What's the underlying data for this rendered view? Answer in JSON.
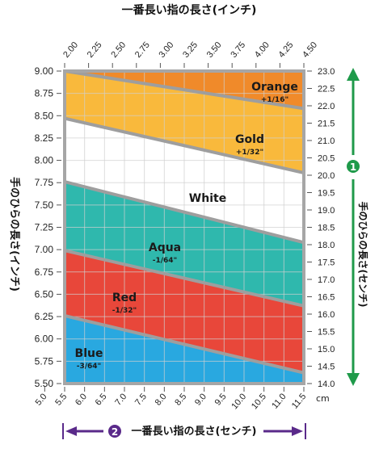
{
  "chart_data": {
    "type": "area",
    "top_axis": {
      "title": "一番長い指の長さ(インチ)",
      "ticks": [
        "2.00",
        "2.25",
        "2.50",
        "2.75",
        "3.00",
        "3.25",
        "3.50",
        "3.75",
        "4.00",
        "4.25",
        "4.50"
      ],
      "range": [
        2.0,
        4.5
      ]
    },
    "bottom_axis": {
      "title": "一番長い指の長さ(センチ)",
      "badge": "2",
      "ticks": [
        "5.0",
        "5.5",
        "6.0",
        "6.5",
        "7.0",
        "7.5",
        "8.0",
        "8.5",
        "9.0",
        "9.5",
        "10.0",
        "10.5",
        "11.0",
        "11.5"
      ],
      "range": [
        5.5,
        11.5
      ],
      "unit": "cm"
    },
    "left_axis": {
      "title": "手のひらの長さ(インチ)",
      "ticks": [
        "9.00",
        "8.75",
        "8.50",
        "8.25",
        "8.00",
        "7.75",
        "7.50",
        "7.25",
        "7.00",
        "6.75",
        "6.50",
        "6.25",
        "6.00",
        "5.75",
        "5.50"
      ],
      "range": [
        5.5,
        9.0
      ]
    },
    "right_axis": {
      "title": "手のひらの長さ(センチ)",
      "badge": "1",
      "ticks": [
        "23.0",
        "22.5",
        "22.0",
        "21.5",
        "21.0",
        "20.5",
        "20.0",
        "19.5",
        "19.0",
        "18.5",
        "18.0",
        "17.5",
        "17.0",
        "16.5",
        "16.0",
        "15.5",
        "15.0",
        "14.5",
        "14.0"
      ],
      "range": [
        14.0,
        23.0
      ]
    },
    "zones": [
      {
        "name": "Orange",
        "adjust": "+1/16\"",
        "color": "#f08a2a"
      },
      {
        "name": "Gold",
        "adjust": "+1/32\"",
        "color": "#f9b93c"
      },
      {
        "name": "White",
        "adjust": "",
        "color": "#ffffff"
      },
      {
        "name": "Aqua",
        "adjust": "-1/64\"",
        "color": "#2fb8ad"
      },
      {
        "name": "Red",
        "adjust": "-1/32\"",
        "color": "#e8473a"
      },
      {
        "name": "Blue",
        "adjust": "-3/64\"",
        "color": "#29a8e0"
      }
    ],
    "boundaries": [
      {
        "between": [
          "Orange",
          "Gold"
        ],
        "left_y": 9.0,
        "right_y": 8.58
      },
      {
        "between": [
          "Gold",
          "White"
        ],
        "left_y": 8.47,
        "right_y": 7.86
      },
      {
        "between": [
          "White",
          "Aqua"
        ],
        "left_y": 7.76,
        "right_y": 7.08
      },
      {
        "between": [
          "Aqua",
          "Red"
        ],
        "left_y": 6.99,
        "right_y": 6.37
      },
      {
        "between": [
          "Red",
          "Blue"
        ],
        "left_y": 6.26,
        "right_y": 5.62
      }
    ],
    "colors": {
      "accent": "#1f9a4a",
      "arrow": "#5a2a8a",
      "frame": "#a6a6a6",
      "grid": "#d0d0d0",
      "boundary": "#9e9e9e"
    }
  }
}
